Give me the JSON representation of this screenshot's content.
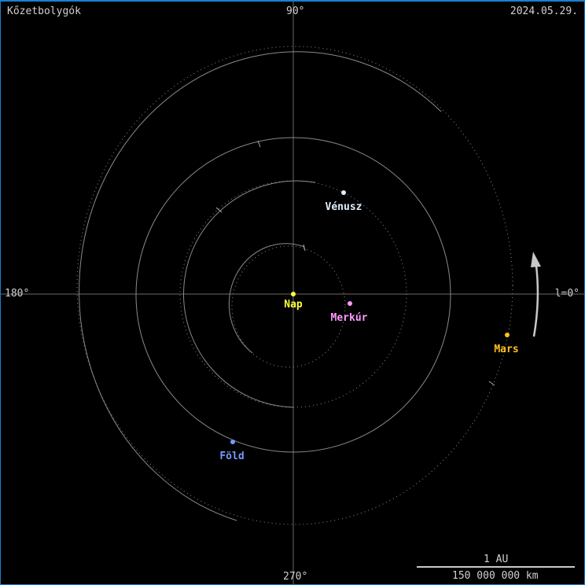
{
  "title": "Kőzetbolygók",
  "date": "2024.05.29.",
  "angles": {
    "top": "90°",
    "left": "180°",
    "bottom": "270°",
    "right": "l=0°"
  },
  "scale": {
    "top_label": "1 AU",
    "bottom_label": "150 000 000 km"
  },
  "bodies": [
    {
      "name": "Nap",
      "color": "#ffff40"
    },
    {
      "name": "Merkúr",
      "color": "#ff99ff"
    },
    {
      "name": "Vénusz",
      "color": "#e0f0ff"
    },
    {
      "name": "Föld",
      "color": "#7799ff"
    },
    {
      "name": "Mars",
      "color": "#ffc020"
    }
  ],
  "colors": {
    "orbit": "#8a8a8a",
    "axis": "#707070",
    "arrow": "#c8c8c8"
  }
}
